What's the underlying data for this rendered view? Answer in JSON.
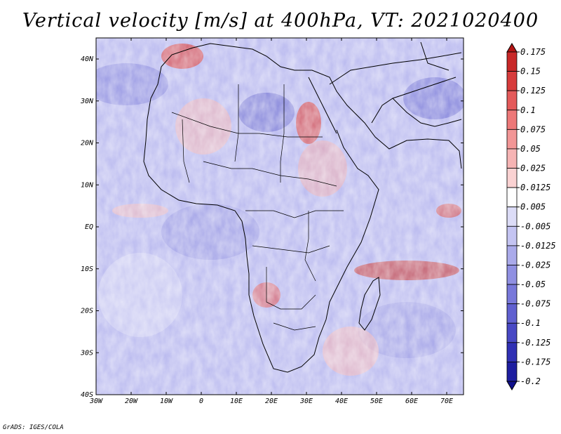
{
  "title": "Vertical velocity [m/s] at 400hPa, VT: 2021020400",
  "credit": "GrADS: IGES/COLA",
  "map": {
    "lat_labels": [
      "40N",
      "30N",
      "20N",
      "10N",
      "EQ",
      "10S",
      "20S",
      "30S",
      "40S"
    ],
    "lon_labels": [
      "30W",
      "20W",
      "10W",
      "0",
      "10E",
      "20E",
      "30E",
      "40E",
      "50E",
      "60E",
      "70E"
    ]
  },
  "colorbar": {
    "labels": [
      "0.175",
      "0.15",
      "0.125",
      "0.1",
      "0.075",
      "0.05",
      "0.025",
      "0.0125",
      "0.005",
      "-0.005",
      "-0.0125",
      "-0.025",
      "-0.05",
      "-0.075",
      "-0.1",
      "-0.125",
      "-0.175",
      "-0.2"
    ],
    "colors": [
      "#b41414",
      "#c82828",
      "#d73c3c",
      "#e45a5a",
      "#ed7878",
      "#f29696",
      "#f6b4b4",
      "#fad2d2",
      "#ffffff",
      "#dcdcf7",
      "#c4c4f2",
      "#aaaaea",
      "#9090e2",
      "#7878da",
      "#6060d0",
      "#4848c4",
      "#3030b4",
      "#1e1ea0",
      "#10108c"
    ]
  }
}
